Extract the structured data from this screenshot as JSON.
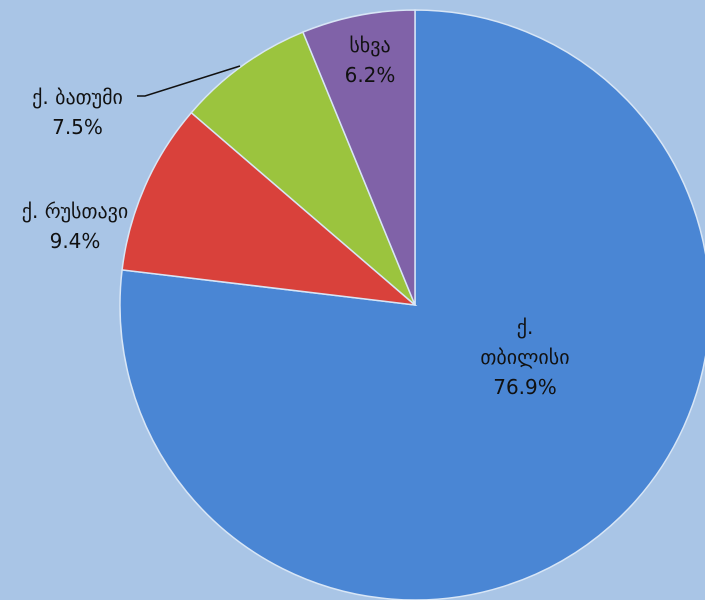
{
  "chart_data": {
    "type": "pie",
    "categories": [
      "ქ. თბილისი",
      "ქ. რუსთავი",
      "ქ. ბათუმი",
      "სხვა"
    ],
    "values": [
      76.9,
      9.4,
      7.5,
      6.2
    ],
    "value_labels": [
      "76.9%",
      "9.4%",
      "7.5%",
      "6.2%"
    ],
    "colors": [
      "#4a86d4",
      "#d9413b",
      "#9bc43e",
      "#8062a8"
    ]
  }
}
